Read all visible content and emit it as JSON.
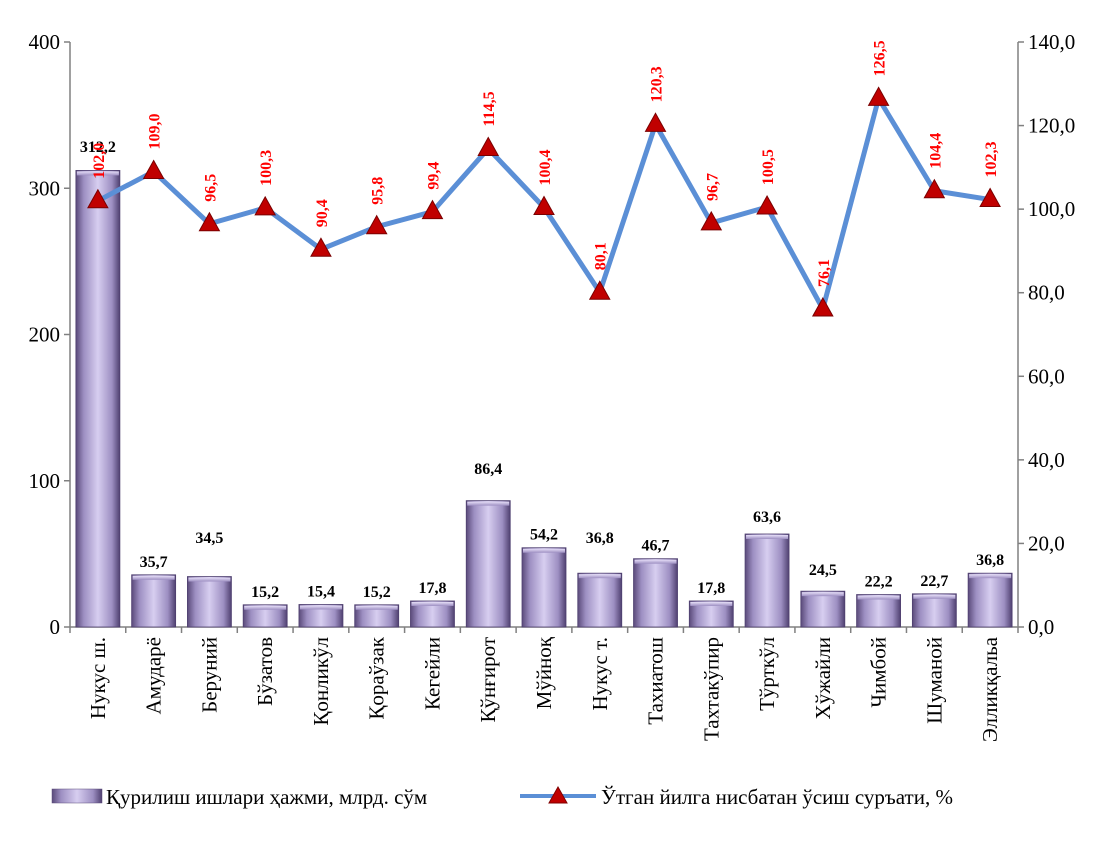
{
  "chart_data": {
    "type": "bar+line",
    "categories": [
      "Нукус ш.",
      "Амударё",
      "Беруний",
      "Бўзатов",
      "Қонликўл",
      "Қораўзак",
      "Кегейли",
      "Қўнғирот",
      "Мўйноқ",
      "Нукус т.",
      "Тахиатош",
      "Тахтакўпир",
      "Тўрткўл",
      "Хўжайли",
      "Чимбой",
      "Шуманой",
      "Элликқальа"
    ],
    "series": [
      {
        "name": "Қурилиш ишлари ҳажми, млрд. сўм",
        "type": "bar",
        "axis": "left",
        "values": [
          312.2,
          35.7,
          34.5,
          15.2,
          15.4,
          15.2,
          17.8,
          86.4,
          54.2,
          36.8,
          46.7,
          17.8,
          63.6,
          24.5,
          22.2,
          22.7,
          36.8
        ],
        "labels": [
          "312,2",
          "35,7",
          "34,5",
          "15,2",
          "15,4",
          "15,2",
          "17,8",
          "86,4",
          "54,2",
          "36,8",
          "46,7",
          "17,8",
          "63,6",
          "24,5",
          "22,2",
          "22,7",
          "36,8"
        ],
        "color": "#a99bc9"
      },
      {
        "name": "Ўтган йилга нисбатан ўсиш суръати, %",
        "type": "line",
        "axis": "right",
        "values": [
          102.0,
          109.0,
          96.5,
          100.3,
          90.4,
          95.8,
          99.4,
          114.5,
          100.4,
          80.1,
          120.3,
          96.7,
          100.5,
          76.1,
          126.5,
          104.4,
          102.3
        ],
        "labels": [
          "102,0",
          "109,0",
          "96,5",
          "100,3",
          "90,4",
          "95,8",
          "99,4",
          "114,5",
          "100,4",
          "80,1",
          "120,3",
          "96,7",
          "100,5",
          "76,1",
          "126,5",
          "104,4",
          "102,3"
        ],
        "color": "#5b8fd6",
        "marker_color": "#c00000",
        "label_color": "#ff0000"
      }
    ],
    "y_left": {
      "min": 0,
      "max": 400,
      "ticks": [
        "0",
        "100",
        "200",
        "300",
        "400"
      ]
    },
    "y_right": {
      "min": 0,
      "max": 140,
      "ticks": [
        "0,0",
        "20,0",
        "40,0",
        "60,0",
        "80,0",
        "100,0",
        "120,0",
        "140,0"
      ]
    },
    "legend_position": "bottom",
    "grid": false
  }
}
